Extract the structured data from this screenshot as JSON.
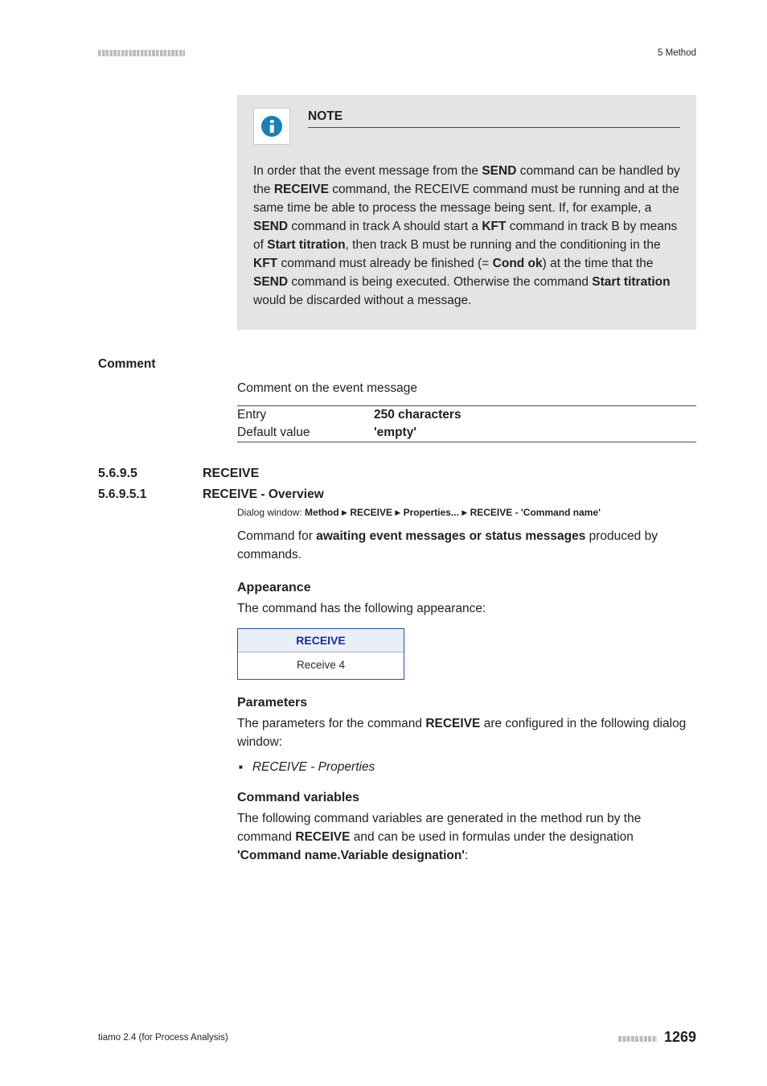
{
  "header": {
    "section_label": "5 Method"
  },
  "note": {
    "title": "NOTE",
    "body_parts": [
      "In order that the event message from the ",
      "SEND",
      " command can be handled by the ",
      "RECEIVE",
      " command, the RECEIVE command must be running and at the same time be able to process the message being sent. If, for example, a ",
      "SEND",
      " command in track A should start a ",
      "KFT",
      " command in track B by means of ",
      "Start titration",
      ", then track B must be running and the conditioning in the ",
      "KFT",
      " command must already be finished (= ",
      "Cond ok",
      ") at the time that the ",
      "SEND",
      " command is being executed. Otherwise the command ",
      "Start titration",
      " would be discarded without a message."
    ]
  },
  "comment": {
    "heading": "Comment",
    "desc": "Comment on the event message",
    "rows": [
      {
        "k": "Entry",
        "v": "250 characters",
        "bold": true
      },
      {
        "k": "Default value",
        "v": "'empty'",
        "bold": true
      }
    ]
  },
  "sec": {
    "num": "5.6.9.5",
    "title": "RECEIVE"
  },
  "subsec": {
    "num": "5.6.9.5.1",
    "title": "RECEIVE - Overview"
  },
  "dialog": {
    "prefix": "Dialog window: ",
    "path": [
      "Method",
      "RECEIVE",
      "Properties...",
      "RECEIVE - 'Command name'"
    ]
  },
  "cmd_desc_parts": [
    "Command for ",
    "awaiting event messages or status messages",
    " produced by commands."
  ],
  "appearance": {
    "heading": "Appearance",
    "desc": "The command has the following appearance:",
    "widget_title": "RECEIVE",
    "widget_sub": "Receive 4"
  },
  "parameters": {
    "heading": "Parameters",
    "desc_parts": [
      "The parameters for the command ",
      "RECEIVE",
      " are configured in the following dialog window:"
    ],
    "items": [
      "RECEIVE - Properties"
    ]
  },
  "cmdvars": {
    "heading": "Command variables",
    "desc_parts": [
      "The following command variables are generated in the method run by the command ",
      "RECEIVE",
      " and can be used in formulas under the designation ",
      "'Command name.Variable designation'",
      ":"
    ]
  },
  "footer": {
    "left": "tiamo 2.4 (for Process Analysis)",
    "page": "1269"
  },
  "colors": {
    "note_bg": "#e4e4e4",
    "icon_bg": "#1a7fb7",
    "widget_border": "#2a4ea0",
    "widget_head_bg": "#e9eef7",
    "widget_text": "#1a2f8a"
  }
}
